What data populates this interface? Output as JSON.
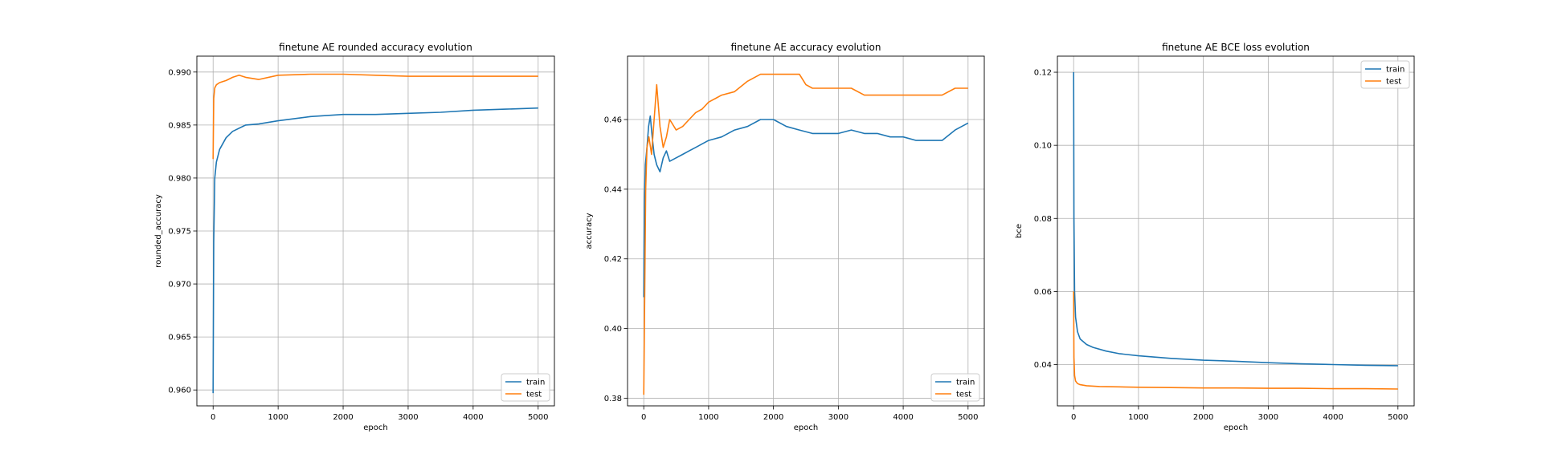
{
  "chart_data": [
    {
      "type": "line",
      "title": "finetune AE rounded accuracy evolution",
      "xlabel": "epoch",
      "ylabel": "rounded_accuracy",
      "xlim": [
        -250,
        5250
      ],
      "ylim": [
        0.9585,
        0.9915
      ],
      "xticks": [
        0,
        1000,
        2000,
        3000,
        4000,
        5000
      ],
      "yticks": [
        0.96,
        0.965,
        0.97,
        0.975,
        0.98,
        0.985,
        0.99
      ],
      "xtick_labels": [
        "0",
        "1000",
        "2000",
        "3000",
        "4000",
        "5000"
      ],
      "ytick_labels": [
        "0.960",
        "0.965",
        "0.970",
        "0.975",
        "0.980",
        "0.985",
        "0.990"
      ],
      "grid": true,
      "legend": {
        "placement": "lower right",
        "entries": [
          "train",
          "test"
        ]
      },
      "series": [
        {
          "name": "train",
          "color": "#1f77b4",
          "x": [
            0,
            10,
            25,
            50,
            100,
            200,
            300,
            500,
            700,
            1000,
            1500,
            2000,
            2500,
            3000,
            3500,
            4000,
            4500,
            5000
          ],
          "y": [
            0.9597,
            0.974,
            0.98,
            0.9815,
            0.9827,
            0.9838,
            0.9844,
            0.985,
            0.9851,
            0.9854,
            0.9858,
            0.986,
            0.986,
            0.9861,
            0.9862,
            0.9864,
            0.9865,
            0.9866
          ]
        },
        {
          "name": "test",
          "color": "#ff7f0e",
          "x": [
            0,
            10,
            25,
            50,
            100,
            200,
            300,
            400,
            500,
            700,
            1000,
            1500,
            2000,
            2500,
            3000,
            3500,
            4000,
            4500,
            5000
          ],
          "y": [
            0.9818,
            0.9875,
            0.9885,
            0.9888,
            0.989,
            0.9892,
            0.9895,
            0.9897,
            0.9895,
            0.9893,
            0.9897,
            0.9898,
            0.9898,
            0.9897,
            0.9896,
            0.9896,
            0.9896,
            0.9896,
            0.9896
          ]
        }
      ]
    },
    {
      "type": "line",
      "title": "finetune AE accuracy evolution",
      "xlabel": "epoch",
      "ylabel": "accuracy",
      "xlim": [
        -250,
        5250
      ],
      "ylim": [
        0.3778,
        0.4782
      ],
      "xticks": [
        0,
        1000,
        2000,
        3000,
        4000,
        5000
      ],
      "yticks": [
        0.38,
        0.4,
        0.42,
        0.44,
        0.46
      ],
      "xtick_labels": [
        "0",
        "1000",
        "2000",
        "3000",
        "4000",
        "5000"
      ],
      "ytick_labels": [
        "0.38",
        "0.40",
        "0.42",
        "0.44",
        "0.46"
      ],
      "grid": true,
      "legend": {
        "placement": "lower right",
        "entries": [
          "train",
          "test"
        ]
      },
      "series": [
        {
          "name": "train",
          "color": "#1f77b4",
          "x": [
            0,
            10,
            25,
            50,
            75,
            100,
            130,
            160,
            200,
            250,
            300,
            350,
            400,
            500,
            600,
            700,
            800,
            900,
            1000,
            1200,
            1400,
            1600,
            1800,
            2000,
            2200,
            2400,
            2600,
            2800,
            3000,
            3200,
            3400,
            3600,
            3800,
            4000,
            4200,
            4400,
            4600,
            4800,
            5000
          ],
          "y": [
            0.409,
            0.436,
            0.447,
            0.452,
            0.458,
            0.461,
            0.455,
            0.45,
            0.447,
            0.445,
            0.449,
            0.451,
            0.448,
            0.449,
            0.45,
            0.451,
            0.452,
            0.453,
            0.454,
            0.455,
            0.457,
            0.458,
            0.46,
            0.46,
            0.458,
            0.457,
            0.456,
            0.456,
            0.456,
            0.457,
            0.456,
            0.456,
            0.455,
            0.455,
            0.454,
            0.454,
            0.454,
            0.457,
            0.459
          ]
        },
        {
          "name": "test",
          "color": "#ff7f0e",
          "x": [
            0,
            15,
            30,
            50,
            80,
            120,
            160,
            200,
            250,
            300,
            350,
            400,
            500,
            600,
            700,
            800,
            900,
            1000,
            1100,
            1200,
            1400,
            1600,
            1800,
            1900,
            2000,
            2200,
            2400,
            2500,
            2600,
            2800,
            3000,
            3200,
            3400,
            3600,
            3800,
            4000,
            4200,
            4400,
            4600,
            4800,
            5000
          ],
          "y": [
            0.381,
            0.41,
            0.44,
            0.452,
            0.455,
            0.45,
            0.46,
            0.47,
            0.458,
            0.452,
            0.455,
            0.46,
            0.457,
            0.458,
            0.46,
            0.462,
            0.463,
            0.465,
            0.466,
            0.467,
            0.468,
            0.471,
            0.473,
            0.473,
            0.473,
            0.473,
            0.473,
            0.47,
            0.469,
            0.469,
            0.469,
            0.469,
            0.467,
            0.467,
            0.467,
            0.467,
            0.467,
            0.467,
            0.467,
            0.469,
            0.469
          ]
        }
      ]
    },
    {
      "type": "line",
      "title": "finetune AE BCE loss evolution",
      "xlabel": "epoch",
      "ylabel": "bce",
      "xlim": [
        -250,
        5250
      ],
      "ylim": [
        0.0287,
        0.1244
      ],
      "xticks": [
        0,
        1000,
        2000,
        3000,
        4000,
        5000
      ],
      "yticks": [
        0.04,
        0.06,
        0.08,
        0.1,
        0.12
      ],
      "xtick_labels": [
        "0",
        "1000",
        "2000",
        "3000",
        "4000",
        "5000"
      ],
      "ytick_labels": [
        "0.04",
        "0.06",
        "0.08",
        "0.10",
        "0.12"
      ],
      "grid": true,
      "legend": {
        "placement": "upper right",
        "entries": [
          "train",
          "test"
        ]
      },
      "series": [
        {
          "name": "train",
          "color": "#1f77b4",
          "x": [
            0,
            5,
            15,
            30,
            60,
            100,
            200,
            300,
            500,
            700,
            1000,
            1500,
            2000,
            2500,
            3000,
            3500,
            4000,
            4500,
            5000
          ],
          "y": [
            0.12,
            0.08,
            0.06,
            0.053,
            0.049,
            0.047,
            0.0455,
            0.0447,
            0.0437,
            0.043,
            0.0424,
            0.0417,
            0.0412,
            0.0409,
            0.0405,
            0.0402,
            0.04,
            0.0398,
            0.0397
          ]
        },
        {
          "name": "test",
          "color": "#ff7f0e",
          "x": [
            0,
            5,
            15,
            30,
            60,
            100,
            200,
            400,
            700,
            1000,
            1500,
            2000,
            2500,
            3000,
            3500,
            4000,
            4500,
            5000
          ],
          "y": [
            0.06,
            0.042,
            0.037,
            0.0355,
            0.0348,
            0.0345,
            0.0342,
            0.034,
            0.0339,
            0.0338,
            0.0337,
            0.0336,
            0.0336,
            0.0335,
            0.0335,
            0.0334,
            0.0334,
            0.0333
          ]
        }
      ]
    }
  ]
}
